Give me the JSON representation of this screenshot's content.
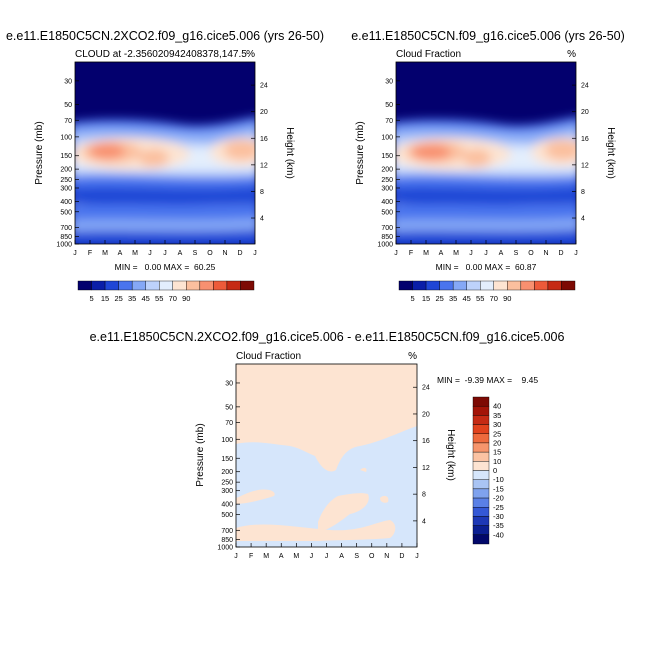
{
  "chart_data": [
    {
      "type": "heatmap",
      "title": "e.e11.E1850C5CN.2XCO2.f09_g16.cice5.006 (yrs 26-50)",
      "subtitle_left": "CLOUD at -2.356020942408378,147.5",
      "subtitle_right": "%",
      "ylabel": "Pressure (mb)",
      "ylabel_right": "Height (km)",
      "x_ticks": [
        "J",
        "F",
        "M",
        "A",
        "M",
        "J",
        "J",
        "A",
        "S",
        "O",
        "N",
        "D",
        "J"
      ],
      "y_ticks": [
        30,
        50,
        70,
        100,
        150,
        200,
        250,
        300,
        400,
        500,
        700,
        850,
        1000
      ],
      "ylim": [
        1000,
        20
      ],
      "y_scale": "log",
      "right_ticks": [
        24,
        20,
        16,
        12,
        8,
        4
      ],
      "stats": "MIN =   0.00 MAX =  60.25",
      "levels": [
        5,
        15,
        25,
        35,
        45,
        55,
        70,
        90
      ],
      "colorbar_labels": [
        "5",
        "15",
        "25",
        "35",
        "45",
        "55",
        "70",
        "90"
      ],
      "colorbar_position": "bottom",
      "max": 60.25,
      "min": 0.0
    },
    {
      "type": "heatmap",
      "title": "e.e11.E1850C5CN.f09_g16.cice5.006 (yrs 26-50)",
      "subtitle_left": "Cloud Fraction",
      "subtitle_right": "%",
      "ylabel": "Pressure (mb)",
      "ylabel_right": "Height (km)",
      "x_ticks": [
        "J",
        "F",
        "M",
        "A",
        "M",
        "J",
        "J",
        "A",
        "S",
        "O",
        "N",
        "D",
        "J"
      ],
      "y_ticks": [
        30,
        50,
        70,
        100,
        150,
        200,
        250,
        300,
        400,
        500,
        700,
        850,
        1000
      ],
      "ylim": [
        1000,
        20
      ],
      "y_scale": "log",
      "right_ticks": [
        24,
        20,
        16,
        12,
        8,
        4
      ],
      "stats": "MIN =   0.00 MAX =  60.87",
      "levels": [
        5,
        15,
        25,
        35,
        45,
        55,
        70,
        90
      ],
      "colorbar_labels": [
        "5",
        "15",
        "25",
        "35",
        "45",
        "55",
        "70",
        "90"
      ],
      "colorbar_position": "bottom",
      "max": 60.87,
      "min": 0.0
    },
    {
      "type": "heatmap",
      "title": "e.e11.E1850C5CN.2XCO2.f09_g16.cice5.006 - e.e11.E1850C5CN.f09_g16.cice5.006",
      "subtitle_left": "Cloud Fraction",
      "subtitle_right": "%",
      "ylabel": "Pressure (mb)",
      "ylabel_right": "Height (km)",
      "x_ticks": [
        "J",
        "F",
        "M",
        "A",
        "M",
        "J",
        "J",
        "A",
        "S",
        "O",
        "N",
        "D",
        "J"
      ],
      "y_ticks": [
        30,
        50,
        70,
        100,
        150,
        200,
        250,
        300,
        400,
        500,
        700,
        850,
        1000
      ],
      "ylim": [
        1000,
        20
      ],
      "y_scale": "log",
      "right_ticks": [
        24,
        20,
        16,
        12,
        8,
        4
      ],
      "stats": "MIN =  -9.39 MAX =    9.45",
      "levels": [
        40,
        35,
        30,
        25,
        20,
        15,
        10,
        0,
        -10,
        -15,
        -20,
        -25,
        -30,
        -35,
        -40
      ],
      "colorbar_labels": [
        "40",
        "35",
        "30",
        "25",
        "20",
        "15",
        "10",
        "0",
        "-10",
        "-15",
        "-20",
        "-25",
        "-30",
        "-35",
        "-40"
      ],
      "colorbar_position": "right",
      "max": 9.45,
      "min": -9.39
    }
  ],
  "colors": {
    "abs": [
      "#03006e",
      "#0a1ea8",
      "#1f46d6",
      "#4a74ee",
      "#85a8f6",
      "#bdd2fb",
      "#e3eefd",
      "#fde4d2",
      "#fbbf9e",
      "#f89070",
      "#ed5a3a",
      "#c52a14",
      "#7d0a04"
    ],
    "diff": [
      "#7d0a04",
      "#a31408",
      "#c52a14",
      "#e1421d",
      "#ee6a3d",
      "#f6956c",
      "#fbc3a3",
      "#fde4d2",
      "#d6e6fb",
      "#a9c4f4",
      "#7fa2ee",
      "#5a80e6",
      "#3458d6",
      "#1d38b6",
      "#0b1f92",
      "#02086a"
    ]
  }
}
